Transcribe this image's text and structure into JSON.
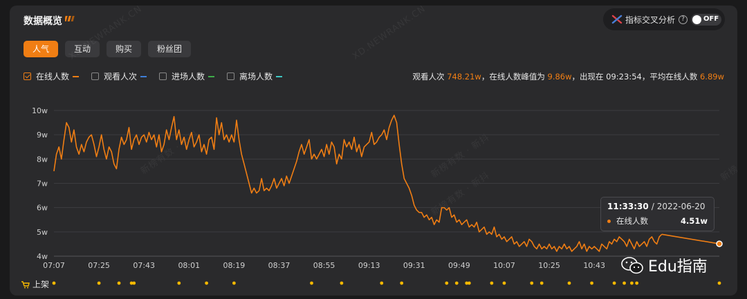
{
  "panel_title": "数据概览",
  "cross_analysis": {
    "label": "指标交叉分析",
    "help": "?",
    "toggle": "OFF"
  },
  "tabs": [
    {
      "label": "人气",
      "active": true
    },
    {
      "label": "互动",
      "active": false
    },
    {
      "label": "购买",
      "active": false
    },
    {
      "label": "粉丝团",
      "active": false
    }
  ],
  "legend": [
    {
      "label": "在线人数",
      "checked": true,
      "color": "#f07e14"
    },
    {
      "label": "观看人次",
      "checked": false,
      "color": "#3f7fd8"
    },
    {
      "label": "进场人数",
      "checked": false,
      "color": "#3fae4a"
    },
    {
      "label": "离场人数",
      "checked": false,
      "color": "#3fc9c4"
    }
  ],
  "summary": {
    "views_label": "观看人次",
    "views_value": "748.21w",
    "peak_label": "，在线人数峰值为",
    "peak_value": "9.86w",
    "time_label": "，出现在",
    "time_value": "09:23:54",
    "avg_label": "，平均在线人数",
    "avg_value": "6.89w"
  },
  "watermarks": [
    "XD.NEWRANK.CN",
    "XD.NEWRANK.CN",
    "新榜有数 · 新抖",
    "新榜有数 · 新抖",
    "新榜有数 · 新抖",
    "新榜"
  ],
  "tooltip": {
    "time": "11:33:30",
    "date": "/ 2022-06-20",
    "series": "在线人数",
    "value": "4.51w"
  },
  "shelf_label": "上架",
  "brand": {
    "text": "Edu指南"
  },
  "colors": {
    "accent": "#f07e14",
    "shelf_dot": "#f5b800"
  },
  "chart_data": {
    "type": "line",
    "x_unit": "minutes since 07:07",
    "xticks": [
      "07:07",
      "07:25",
      "07:43",
      "08:01",
      "08:19",
      "08:37",
      "08:55",
      "09:13",
      "09:31",
      "09:49",
      "10:07",
      "10:25",
      "10:43"
    ],
    "yticks": [
      "4w",
      "5w",
      "6w",
      "7w",
      "8w",
      "9w",
      "10w"
    ],
    "ylim": [
      4,
      10
    ],
    "xlim": [
      "07:07",
      "11:33"
    ],
    "grid": true,
    "series": [
      {
        "name": "在线人数",
        "color": "#f07e14",
        "points": [
          [
            "07:07",
            7.5
          ],
          [
            "07:08",
            8.2
          ],
          [
            "07:09",
            8.5
          ],
          [
            "07:10",
            8.0
          ],
          [
            "07:11",
            8.8
          ],
          [
            "07:12",
            9.5
          ],
          [
            "07:13",
            9.3
          ],
          [
            "07:14",
            8.7
          ],
          [
            "07:15",
            9.2
          ],
          [
            "07:16",
            8.5
          ],
          [
            "07:17",
            8.2
          ],
          [
            "07:18",
            8.6
          ],
          [
            "07:19",
            8.3
          ],
          [
            "07:20",
            8.7
          ],
          [
            "07:21",
            8.9
          ],
          [
            "07:22",
            9.0
          ],
          [
            "07:23",
            8.6
          ],
          [
            "07:24",
            8.1
          ],
          [
            "07:25",
            8.5
          ],
          [
            "07:26",
            9.0
          ],
          [
            "07:27",
            8.4
          ],
          [
            "07:28",
            8.0
          ],
          [
            "07:29",
            8.5
          ],
          [
            "07:30",
            8.3
          ],
          [
            "07:31",
            7.8
          ],
          [
            "07:32",
            7.6
          ],
          [
            "07:33",
            8.4
          ],
          [
            "07:34",
            8.9
          ],
          [
            "07:35",
            8.6
          ],
          [
            "07:36",
            8.8
          ],
          [
            "07:37",
            9.3
          ],
          [
            "07:38",
            8.4
          ],
          [
            "07:39",
            8.8
          ],
          [
            "07:40",
            9.0
          ],
          [
            "07:41",
            8.6
          ],
          [
            "07:42",
            8.9
          ],
          [
            "07:43",
            9.0
          ],
          [
            "07:44",
            8.7
          ],
          [
            "07:45",
            9.1
          ],
          [
            "07:46",
            8.8
          ],
          [
            "07:47",
            9.0
          ],
          [
            "07:48",
            8.5
          ],
          [
            "07:49",
            9.0
          ],
          [
            "07:50",
            8.3
          ],
          [
            "07:51",
            8.6
          ],
          [
            "07:52",
            9.2
          ],
          [
            "07:53",
            8.8
          ],
          [
            "07:54",
            9.3
          ],
          [
            "07:55",
            9.75
          ],
          [
            "07:56",
            8.8
          ],
          [
            "07:57",
            9.2
          ],
          [
            "07:58",
            8.6
          ],
          [
            "07:59",
            8.9
          ],
          [
            "08:00",
            8.4
          ],
          [
            "08:01",
            8.8
          ],
          [
            "08:02",
            9.1
          ],
          [
            "08:03",
            8.5
          ],
          [
            "08:04",
            8.7
          ],
          [
            "08:05",
            9.0
          ],
          [
            "08:06",
            8.3
          ],
          [
            "08:07",
            8.6
          ],
          [
            "08:08",
            8.2
          ],
          [
            "08:09",
            8.8
          ],
          [
            "08:10",
            8.9
          ],
          [
            "08:11",
            8.4
          ],
          [
            "08:12",
            9.7
          ],
          [
            "08:13",
            9.0
          ],
          [
            "08:14",
            9.5
          ],
          [
            "08:15",
            8.8
          ],
          [
            "08:16",
            9.0
          ],
          [
            "08:17",
            8.7
          ],
          [
            "08:18",
            9.0
          ],
          [
            "08:19",
            8.7
          ],
          [
            "08:20",
            9.6
          ],
          [
            "08:21",
            8.8
          ],
          [
            "08:22",
            8.2
          ],
          [
            "08:23",
            7.8
          ],
          [
            "08:24",
            7.4
          ],
          [
            "08:25",
            7.0
          ],
          [
            "08:26",
            6.6
          ],
          [
            "08:27",
            6.8
          ],
          [
            "08:28",
            6.6
          ],
          [
            "08:29",
            6.7
          ],
          [
            "08:30",
            7.2
          ],
          [
            "08:31",
            6.7
          ],
          [
            "08:32",
            6.8
          ],
          [
            "08:33",
            6.7
          ],
          [
            "08:34",
            6.9
          ],
          [
            "08:35",
            7.2
          ],
          [
            "08:36",
            6.8
          ],
          [
            "08:37",
            7.0
          ],
          [
            "08:38",
            7.2
          ],
          [
            "08:39",
            6.9
          ],
          [
            "08:40",
            7.3
          ],
          [
            "08:41",
            7.0
          ],
          [
            "08:42",
            7.3
          ],
          [
            "08:43",
            7.6
          ],
          [
            "08:44",
            7.9
          ],
          [
            "08:45",
            8.3
          ],
          [
            "08:46",
            8.6
          ],
          [
            "08:47",
            8.2
          ],
          [
            "08:48",
            8.5
          ],
          [
            "08:49",
            8.8
          ],
          [
            "08:50",
            8.0
          ],
          [
            "08:51",
            8.2
          ],
          [
            "08:52",
            8.0
          ],
          [
            "08:53",
            8.2
          ],
          [
            "08:54",
            8.4
          ],
          [
            "08:55",
            8.1
          ],
          [
            "08:56",
            8.6
          ],
          [
            "08:57",
            8.2
          ],
          [
            "08:58",
            8.7
          ],
          [
            "08:59",
            8.5
          ],
          [
            "09:00",
            7.8
          ],
          [
            "09:01",
            8.2
          ],
          [
            "09:02",
            8.0
          ],
          [
            "09:03",
            8.8
          ],
          [
            "09:04",
            8.5
          ],
          [
            "09:05",
            8.7
          ],
          [
            "09:06",
            8.4
          ],
          [
            "09:07",
            8.9
          ],
          [
            "09:08",
            8.3
          ],
          [
            "09:09",
            8.6
          ],
          [
            "09:10",
            8.1
          ],
          [
            "09:11",
            8.5
          ],
          [
            "09:12",
            8.6
          ],
          [
            "09:13",
            8.7
          ],
          [
            "09:14",
            9.1
          ],
          [
            "09:15",
            8.6
          ],
          [
            "09:16",
            8.7
          ],
          [
            "09:17",
            8.9
          ],
          [
            "09:18",
            9.0
          ],
          [
            "09:19",
            9.2
          ],
          [
            "09:20",
            8.8
          ],
          [
            "09:21",
            9.3
          ],
          [
            "09:22",
            9.6
          ],
          [
            "09:23",
            9.8
          ],
          [
            "09:24",
            9.5
          ],
          [
            "09:25",
            8.6
          ],
          [
            "09:26",
            7.8
          ],
          [
            "09:27",
            7.2
          ],
          [
            "09:28",
            7.0
          ],
          [
            "09:29",
            6.8
          ],
          [
            "09:30",
            6.5
          ],
          [
            "09:31",
            6.1
          ],
          [
            "09:32",
            5.9
          ],
          [
            "09:33",
            5.8
          ],
          [
            "09:34",
            5.8
          ],
          [
            "09:35",
            5.6
          ],
          [
            "09:36",
            5.7
          ],
          [
            "09:37",
            5.5
          ],
          [
            "09:38",
            5.6
          ],
          [
            "09:39",
            5.3
          ],
          [
            "09:40",
            5.5
          ],
          [
            "09:41",
            5.4
          ],
          [
            "09:42",
            6.0
          ],
          [
            "09:43",
            6.0
          ],
          [
            "09:44",
            5.9
          ],
          [
            "09:45",
            6.0
          ],
          [
            "09:46",
            5.6
          ],
          [
            "09:47",
            5.7
          ],
          [
            "09:48",
            5.4
          ],
          [
            "09:49",
            5.5
          ],
          [
            "09:50",
            5.3
          ],
          [
            "09:51",
            5.4
          ],
          [
            "09:52",
            5.5
          ],
          [
            "09:53",
            5.2
          ],
          [
            "09:54",
            5.3
          ],
          [
            "09:55",
            5.2
          ],
          [
            "09:56",
            5.4
          ],
          [
            "09:57",
            5.0
          ],
          [
            "09:58",
            5.1
          ],
          [
            "09:59",
            5.2
          ],
          [
            "10:00",
            4.9
          ],
          [
            "10:01",
            5.0
          ],
          [
            "10:02",
            4.9
          ],
          [
            "10:03",
            5.2
          ],
          [
            "10:04",
            4.8
          ],
          [
            "10:05",
            4.9
          ],
          [
            "10:06",
            4.7
          ],
          [
            "10:07",
            4.8
          ],
          [
            "10:08",
            4.6
          ],
          [
            "10:09",
            4.7
          ],
          [
            "10:10",
            4.8
          ],
          [
            "10:11",
            4.5
          ],
          [
            "10:12",
            4.6
          ],
          [
            "10:13",
            4.4
          ],
          [
            "10:14",
            4.5
          ],
          [
            "10:15",
            4.6
          ],
          [
            "10:16",
            4.4
          ],
          [
            "10:17",
            4.7
          ],
          [
            "10:18",
            4.6
          ],
          [
            "10:19",
            4.4
          ],
          [
            "10:20",
            4.3
          ],
          [
            "10:21",
            4.5
          ],
          [
            "10:22",
            4.3
          ],
          [
            "10:23",
            4.4
          ],
          [
            "10:24",
            4.3
          ],
          [
            "10:25",
            4.5
          ],
          [
            "10:26",
            4.3
          ],
          [
            "10:27",
            4.4
          ],
          [
            "10:28",
            4.2
          ],
          [
            "10:29",
            4.4
          ],
          [
            "10:30",
            4.3
          ],
          [
            "10:31",
            4.5
          ],
          [
            "10:32",
            4.3
          ],
          [
            "10:33",
            4.4
          ],
          [
            "10:34",
            4.2
          ],
          [
            "10:35",
            4.3
          ],
          [
            "10:36",
            4.4
          ],
          [
            "10:37",
            4.6
          ],
          [
            "10:38",
            4.3
          ],
          [
            "10:39",
            4.5
          ],
          [
            "10:40",
            4.2
          ],
          [
            "10:41",
            4.4
          ],
          [
            "10:42",
            4.3
          ],
          [
            "10:43",
            4.4
          ],
          [
            "10:44",
            4.3
          ],
          [
            "10:45",
            4.2
          ],
          [
            "10:46",
            4.5
          ],
          [
            "10:47",
            4.4
          ],
          [
            "10:48",
            4.3
          ],
          [
            "10:49",
            4.6
          ],
          [
            "10:50",
            4.5
          ],
          [
            "10:51",
            4.7
          ],
          [
            "10:52",
            4.6
          ],
          [
            "10:53",
            4.8
          ],
          [
            "10:54",
            4.7
          ],
          [
            "10:55",
            4.6
          ],
          [
            "10:56",
            4.4
          ],
          [
            "10:57",
            4.7
          ],
          [
            "10:58",
            4.5
          ],
          [
            "10:59",
            4.3
          ],
          [
            "11:00",
            4.6
          ],
          [
            "11:01",
            4.4
          ],
          [
            "11:02",
            4.5
          ],
          [
            "11:03",
            4.6
          ],
          [
            "11:04",
            4.4
          ],
          [
            "11:05",
            4.7
          ],
          [
            "11:06",
            4.8
          ],
          [
            "11:07",
            4.6
          ],
          [
            "11:08",
            4.5
          ],
          [
            "11:09",
            4.8
          ],
          [
            "11:10",
            4.9
          ],
          [
            "11:33",
            4.51
          ]
        ]
      }
    ],
    "shelf_markers": [
      "07:07",
      "07:25",
      "07:33",
      "07:38",
      "07:39",
      "07:57",
      "08:08",
      "08:19",
      "08:50",
      "09:02",
      "09:18",
      "09:26",
      "09:44",
      "09:48",
      "09:52",
      "09:53",
      "10:02",
      "10:07",
      "10:18",
      "10:22",
      "10:33",
      "10:42",
      "10:51",
      "10:55",
      "10:58",
      "11:00",
      "11:33"
    ]
  }
}
